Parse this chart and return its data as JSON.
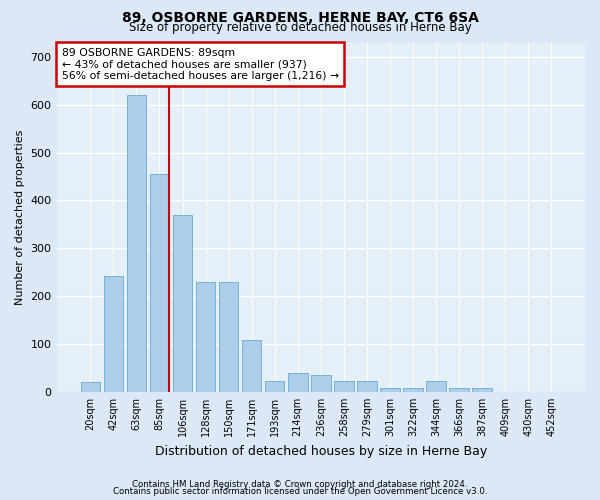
{
  "title": "89, OSBORNE GARDENS, HERNE BAY, CT6 6SA",
  "subtitle": "Size of property relative to detached houses in Herne Bay",
  "xlabel": "Distribution of detached houses by size in Herne Bay",
  "ylabel": "Number of detached properties",
  "categories": [
    "20sqm",
    "42sqm",
    "63sqm",
    "85sqm",
    "106sqm",
    "128sqm",
    "150sqm",
    "171sqm",
    "193sqm",
    "214sqm",
    "236sqm",
    "258sqm",
    "279sqm",
    "301sqm",
    "322sqm",
    "344sqm",
    "366sqm",
    "387sqm",
    "409sqm",
    "430sqm",
    "452sqm"
  ],
  "values": [
    20,
    242,
    620,
    455,
    370,
    230,
    230,
    108,
    22,
    40,
    35,
    22,
    22,
    8,
    8,
    22,
    8,
    8,
    0,
    0,
    0
  ],
  "bar_color": "#aecde8",
  "bar_edge_color": "#6aaad4",
  "marker_bar_index": 3,
  "annotation_lines": [
    "89 OSBORNE GARDENS: 89sqm",
    "← 43% of detached houses are smaller (937)",
    "56% of semi-detached houses are larger (1,216) →"
  ],
  "annotation_box_color": "#ffffff",
  "annotation_box_edge": "#cc0000",
  "marker_line_color": "#cc0000",
  "ylim": [
    0,
    730
  ],
  "yticks": [
    0,
    100,
    200,
    300,
    400,
    500,
    600,
    700
  ],
  "bg_color": "#dce8f5",
  "plot_bg_color": "#e4eff8",
  "grid_color": "#ffffff",
  "footer1": "Contains HM Land Registry data © Crown copyright and database right 2024.",
  "footer2": "Contains public sector information licensed under the Open Government Licence v3.0."
}
